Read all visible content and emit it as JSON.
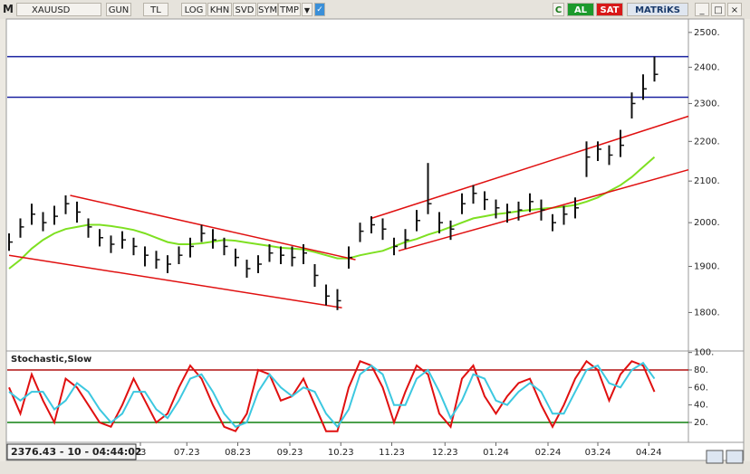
{
  "toolbar": {
    "logo_left": "M",
    "symbol": "XAUUSD",
    "buttons": [
      "GUN",
      "TL",
      "LOG",
      "KHN",
      "SVD",
      "SYM",
      "TMP"
    ],
    "c": "C",
    "buy": "AL",
    "sell": "SAT",
    "brand": "MATRiKS"
  },
  "status": "2376.43 - 10 - 04:44:02",
  "chart_data": [
    {
      "type": "hlc",
      "log": true,
      "ylim": [
        1726,
        2537
      ],
      "xlim": [
        0,
        60
      ],
      "yticks": [
        {
          "value": 1800,
          "label": "1800."
        },
        {
          "value": 1900,
          "label": "1900."
        },
        {
          "value": 2000,
          "label": "2000."
        },
        {
          "value": 2100,
          "label": "2100."
        },
        {
          "value": 2200,
          "label": "2200."
        },
        {
          "value": 2300,
          "label": "2300."
        },
        {
          "value": 2400,
          "label": "2400."
        },
        {
          "value": 2500,
          "label": "2500."
        }
      ],
      "x": [
        0,
        1,
        2,
        3,
        4,
        5,
        6,
        7,
        8,
        9,
        10,
        11,
        12,
        13,
        14,
        15,
        16,
        17,
        18,
        19,
        20,
        21,
        22,
        23,
        24,
        25,
        26,
        27,
        28,
        29,
        30,
        31,
        32,
        33,
        34,
        35,
        36,
        37,
        38,
        39,
        40,
        41,
        42,
        43,
        44,
        45,
        46,
        47,
        48,
        49,
        50,
        51,
        52,
        53,
        54,
        55,
        56,
        57
      ],
      "high": [
        1975,
        2010,
        2045,
        2025,
        2040,
        2065,
        2050,
        2010,
        1985,
        1970,
        1980,
        1965,
        1945,
        1935,
        1925,
        1945,
        1965,
        1995,
        1985,
        1965,
        1940,
        1915,
        1925,
        1950,
        1945,
        1945,
        1950,
        1905,
        1860,
        1850,
        1945,
        2000,
        2015,
        2010,
        1965,
        1985,
        2030,
        2145,
        2025,
        2005,
        2070,
        2090,
        2075,
        2055,
        2045,
        2050,
        2070,
        2055,
        2020,
        2040,
        2060,
        2200,
        2200,
        2190,
        2230,
        2330,
        2380,
        2430
      ],
      "low": [
        1935,
        1965,
        1995,
        1980,
        1995,
        2020,
        2000,
        1965,
        1945,
        1930,
        1940,
        1925,
        1900,
        1895,
        1885,
        1905,
        1920,
        1955,
        1940,
        1925,
        1900,
        1875,
        1885,
        1910,
        1905,
        1900,
        1905,
        1855,
        1815,
        1805,
        1895,
        1955,
        1975,
        1960,
        1925,
        1940,
        1980,
        2020,
        1975,
        1960,
        2020,
        2045,
        2030,
        2010,
        2000,
        2005,
        2025,
        2005,
        1980,
        1995,
        2010,
        2110,
        2150,
        2140,
        2160,
        2260,
        2310,
        2360
      ],
      "close": [
        1955,
        1990,
        2020,
        2000,
        2015,
        2045,
        2025,
        1990,
        1965,
        1950,
        1960,
        1945,
        1925,
        1915,
        1905,
        1925,
        1945,
        1975,
        1960,
        1945,
        1920,
        1895,
        1905,
        1930,
        1925,
        1920,
        1930,
        1880,
        1835,
        1825,
        1920,
        1980,
        1995,
        1985,
        1945,
        1960,
        2005,
        2045,
        2000,
        1985,
        2045,
        2070,
        2055,
        2035,
        2025,
        2030,
        2050,
        2030,
        2000,
        2020,
        2035,
        2160,
        2180,
        2165,
        2190,
        2300,
        2340,
        2380
      ],
      "ma": {
        "color": "#7ee021",
        "values": [
          1895,
          1915,
          1940,
          1960,
          1975,
          1985,
          1990,
          1995,
          1995,
          1992,
          1988,
          1983,
          1975,
          1965,
          1955,
          1950,
          1950,
          1952,
          1956,
          1960,
          1958,
          1954,
          1950,
          1946,
          1942,
          1940,
          1938,
          1932,
          1925,
          1918,
          1918,
          1925,
          1930,
          1935,
          1945,
          1955,
          1962,
          1972,
          1980,
          1990,
          2000,
          2010,
          2015,
          2020,
          2023,
          2027,
          2030,
          2033,
          2035,
          2038,
          2042,
          2050,
          2060,
          2075,
          2090,
          2110,
          2135,
          2160
        ]
      },
      "trendlines": [
        {
          "color": "#e01010",
          "x": [
            5.4,
            30.6
          ],
          "y": [
            2065,
            1915
          ]
        },
        {
          "color": "#e01010",
          "x": [
            0,
            29.4
          ],
          "y": [
            1925,
            1810
          ]
        },
        {
          "color": "#e01010",
          "x": [
            32,
            60
          ],
          "y": [
            2010,
            2266
          ]
        },
        {
          "color": "#e01010",
          "x": [
            34.4,
            60
          ],
          "y": [
            1935,
            2128
          ]
        }
      ],
      "hlines": [
        {
          "color": "#1a22a0",
          "value": 2430
        },
        {
          "color": "#1a22a0",
          "value": 2317
        }
      ],
      "bar_color": "#111111"
    },
    {
      "type": "line",
      "title": "Stochastic,Slow",
      "ylim": [
        -0.7,
        101.7
      ],
      "xlim": [
        0,
        60
      ],
      "yticks": [
        {
          "value": 20,
          "label": "20."
        },
        {
          "value": 40,
          "label": "40."
        },
        {
          "value": 60,
          "label": "60."
        },
        {
          "value": 80,
          "label": "80."
        },
        {
          "value": 100,
          "label": "100."
        }
      ],
      "xticks": [
        {
          "value": 11.6,
          "label": "23"
        },
        {
          "value": 15.7,
          "label": "07.23"
        },
        {
          "value": 20.2,
          "label": "08.23"
        },
        {
          "value": 24.8,
          "label": "09.23"
        },
        {
          "value": 29.3,
          "label": "10.23"
        },
        {
          "value": 33.8,
          "label": "11.23"
        },
        {
          "value": 38.5,
          "label": "12.23"
        },
        {
          "value": 43,
          "label": "01.24"
        },
        {
          "value": 47.6,
          "label": "02.24"
        },
        {
          "value": 52,
          "label": "03.24"
        },
        {
          "value": 56.5,
          "label": "04.24"
        }
      ],
      "x": [
        0,
        1,
        2,
        3,
        4,
        5,
        6,
        7,
        8,
        9,
        10,
        11,
        12,
        13,
        14,
        15,
        16,
        17,
        18,
        19,
        20,
        21,
        22,
        23,
        24,
        25,
        26,
        27,
        28,
        29,
        30,
        31,
        32,
        33,
        34,
        35,
        36,
        37,
        38,
        39,
        40,
        41,
        42,
        43,
        44,
        45,
        46,
        47,
        48,
        49,
        50,
        51,
        52,
        53,
        54,
        55,
        56,
        57
      ],
      "series": [
        {
          "color": "#e01010",
          "values": [
            60,
            30,
            75,
            45,
            20,
            70,
            60,
            40,
            20,
            15,
            40,
            70,
            45,
            20,
            30,
            60,
            85,
            70,
            40,
            15,
            10,
            30,
            80,
            75,
            45,
            50,
            70,
            40,
            10,
            10,
            60,
            90,
            85,
            60,
            20,
            55,
            85,
            75,
            30,
            15,
            70,
            85,
            50,
            30,
            50,
            65,
            70,
            40,
            15,
            40,
            70,
            90,
            80,
            45,
            75,
            90,
            85,
            55
          ]
        },
        {
          "color": "#3cc8e0",
          "values": [
            55,
            45,
            55,
            55,
            35,
            45,
            65,
            55,
            35,
            20,
            30,
            55,
            55,
            35,
            25,
            45,
            70,
            75,
            55,
            30,
            15,
            20,
            55,
            75,
            60,
            50,
            60,
            55,
            30,
            15,
            35,
            75,
            85,
            75,
            40,
            40,
            70,
            80,
            55,
            25,
            45,
            75,
            70,
            45,
            40,
            55,
            65,
            55,
            30,
            30,
            55,
            80,
            85,
            65,
            60,
            80,
            88,
            70
          ]
        }
      ],
      "hlines": [
        {
          "color": "#b01010",
          "value": 80
        },
        {
          "color": "#108010",
          "value": 20
        }
      ]
    }
  ]
}
